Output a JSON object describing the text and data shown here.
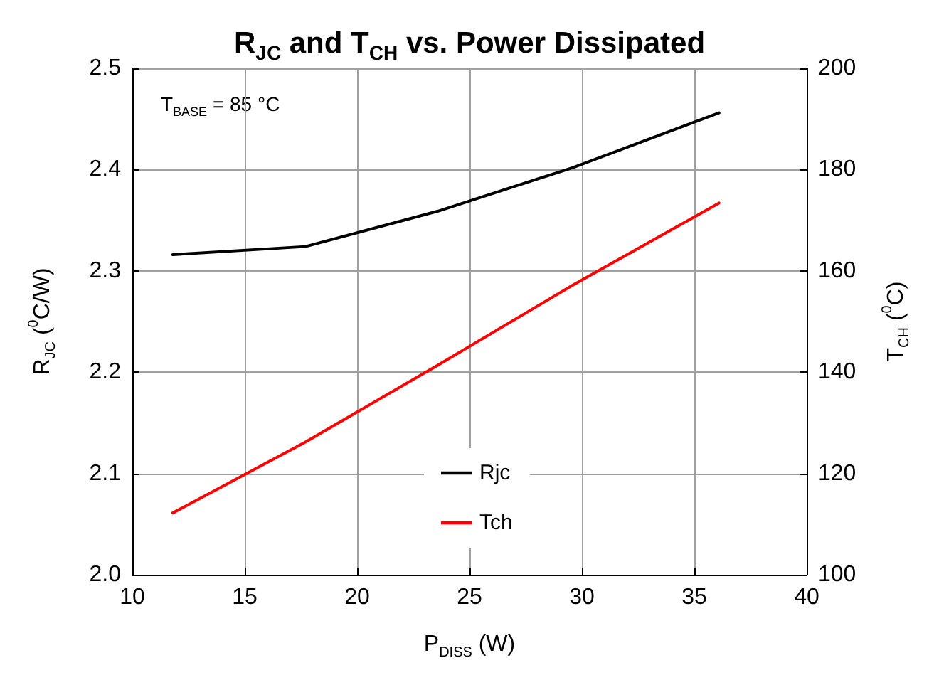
{
  "chart_data": {
    "type": "line",
    "title": "R$_{JC}$ and T$_{CH}$ vs. Power Dissipated",
    "xlabel": "P$_{DISS}$ (W)",
    "ylabel": "R$_{JC}$ ($^{0}$C/W)",
    "y2label": "T$_{CH}$ ($^{0}$C)",
    "annotations": [
      "T$_{BASE}$ = 85 °C"
    ],
    "x": [
      11.8,
      17.7,
      23.6,
      29.6,
      36.1
    ],
    "series": [
      {
        "name": "Rjc",
        "color": "#000000",
        "values": [
          2.316,
          2.324,
          2.359,
          2.402,
          2.456
        ]
      },
      {
        "name": "Tch",
        "color": "#ff0000",
        "axis": "y2",
        "values": [
          112.2,
          126.2,
          141.4,
          157.2,
          173.4
        ]
      }
    ],
    "xlim": [
      10,
      40
    ],
    "xticks": [
      10,
      15,
      20,
      25,
      30,
      35,
      40
    ],
    "ylim": [
      2.0,
      2.5
    ],
    "yticks": [
      {
        "value": 2,
        "label": "2.0"
      },
      2.1,
      2.2,
      2.3,
      2.4,
      2.5
    ],
    "y2lim": [
      100,
      200
    ],
    "y2ticks": [
      100,
      120,
      140,
      160,
      180,
      200
    ],
    "grid": true,
    "legend": "bottom",
    "marker": "none",
    "line_style": "solid"
  }
}
